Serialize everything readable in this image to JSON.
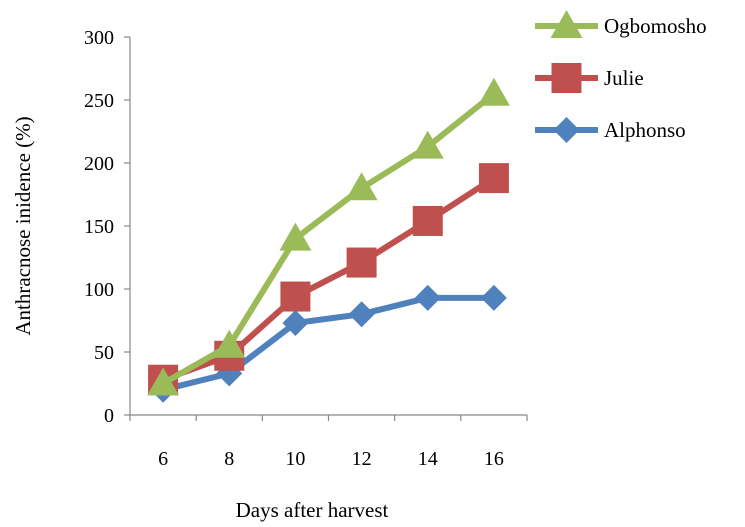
{
  "chart_data": {
    "type": "line",
    "x": [
      6,
      8,
      10,
      12,
      14,
      16
    ],
    "x_tick_labels": [
      "6",
      "8",
      "10",
      "12",
      "14",
      "16"
    ],
    "y_tick_labels": [
      "0",
      "50",
      "100",
      "150",
      "200",
      "250",
      "300"
    ],
    "ylim": [
      0,
      300
    ],
    "xlabel": "Days after harvest",
    "ylabel": "Anthracnose inidence (%)",
    "grid": false,
    "legend_position": "top-right",
    "series": [
      {
        "name": "Ogbomosho",
        "color": "#9BBB59",
        "marker": "triangle",
        "values": [
          25,
          55,
          140,
          180,
          213,
          255
        ]
      },
      {
        "name": "Julie",
        "color": "#C0504D",
        "marker": "square",
        "values": [
          28,
          47,
          94,
          121,
          154,
          188
        ]
      },
      {
        "name": "Alphonso",
        "color": "#4F81BD",
        "marker": "diamond",
        "values": [
          20,
          33,
          73,
          80,
          93,
          93
        ]
      }
    ]
  }
}
